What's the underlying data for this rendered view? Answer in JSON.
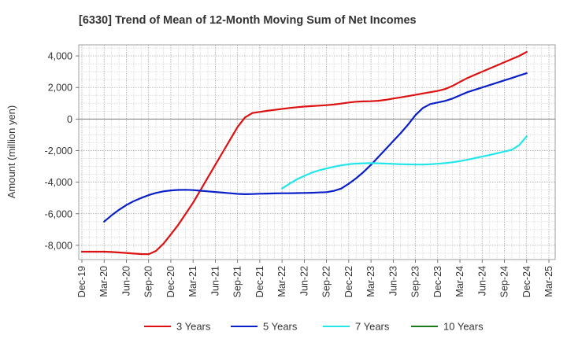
{
  "chart_data": {
    "type": "line",
    "title": "[6330]  Trend of Mean of 12-Month Moving Sum of Net Incomes",
    "xlabel": "",
    "ylabel": "Amount (million yen)",
    "ylim": [
      -8900,
      4700
    ],
    "yticks": [
      4000,
      2000,
      0,
      -2000,
      -4000,
      -6000,
      -8000
    ],
    "ytick_labels": [
      "4,000",
      "2,000",
      "0",
      "-2,000",
      "-4,000",
      "-6,000",
      "-8,000"
    ],
    "x_categories": [
      "Dec-19",
      "Mar-20",
      "Jun-20",
      "Sep-20",
      "Dec-20",
      "Mar-21",
      "Jun-21",
      "Sep-21",
      "Dec-21",
      "Mar-22",
      "Jun-22",
      "Sep-22",
      "Dec-22",
      "Mar-23",
      "Jun-23",
      "Sep-23",
      "Dec-23",
      "Mar-24",
      "Jun-24",
      "Sep-24",
      "Dec-24",
      "Mar-25"
    ],
    "grid": true,
    "legend_position": "bottom",
    "series": [
      {
        "name": "3 Years",
        "color": "#dd1111",
        "x": [
          "Dec-19",
          "Jan-20",
          "Feb-20",
          "Mar-20",
          "Apr-20",
          "May-20",
          "Jun-20",
          "Jul-20",
          "Aug-20",
          "Sep-20",
          "Oct-20",
          "Nov-20",
          "Dec-20",
          "Jan-21",
          "Feb-21",
          "Mar-21",
          "Apr-21",
          "May-21",
          "Jun-21",
          "Jul-21",
          "Aug-21",
          "Sep-21",
          "Oct-21",
          "Nov-21",
          "Dec-21",
          "Jan-22",
          "Feb-22",
          "Mar-22",
          "Apr-22",
          "May-22",
          "Jun-22",
          "Jul-22",
          "Aug-22",
          "Sep-22",
          "Oct-22",
          "Nov-22",
          "Dec-22",
          "Jan-23",
          "Feb-23",
          "Mar-23",
          "Apr-23",
          "May-23",
          "Jun-23",
          "Jul-23",
          "Aug-23",
          "Sep-23",
          "Oct-23",
          "Nov-23",
          "Dec-23",
          "Jan-24",
          "Feb-24",
          "Mar-24",
          "Apr-24",
          "May-24",
          "Jun-24",
          "Jul-24",
          "Aug-24",
          "Sep-24",
          "Oct-24",
          "Nov-24",
          "Dec-24"
        ],
        "values": [
          -8400,
          -8400,
          -8400,
          -8400,
          -8420,
          -8450,
          -8480,
          -8520,
          -8550,
          -8560,
          -8350,
          -7900,
          -7300,
          -6700,
          -6000,
          -5300,
          -4500,
          -3700,
          -2900,
          -2100,
          -1300,
          -500,
          100,
          380,
          450,
          520,
          580,
          640,
          700,
          750,
          790,
          820,
          850,
          880,
          920,
          980,
          1050,
          1100,
          1120,
          1130,
          1160,
          1220,
          1300,
          1370,
          1450,
          1530,
          1620,
          1700,
          1780,
          1900,
          2100,
          2350,
          2600,
          2800,
          3000,
          3200,
          3400,
          3600,
          3800,
          4000,
          4250
        ]
      },
      {
        "name": "5 Years",
        "color": "#0a1fc7",
        "x": [
          "Mar-20",
          "Apr-20",
          "May-20",
          "Jun-20",
          "Jul-20",
          "Aug-20",
          "Sep-20",
          "Oct-20",
          "Nov-20",
          "Dec-20",
          "Jan-21",
          "Feb-21",
          "Mar-21",
          "Apr-21",
          "May-21",
          "Jun-21",
          "Jul-21",
          "Aug-21",
          "Sep-21",
          "Oct-21",
          "Nov-21",
          "Dec-21",
          "Jan-22",
          "Feb-22",
          "Mar-22",
          "Apr-22",
          "May-22",
          "Jun-22",
          "Jul-22",
          "Aug-22",
          "Sep-22",
          "Oct-22",
          "Nov-22",
          "Dec-22",
          "Jan-23",
          "Feb-23",
          "Mar-23",
          "Apr-23",
          "May-23",
          "Jun-23",
          "Jul-23",
          "Aug-23",
          "Sep-23",
          "Oct-23",
          "Nov-23",
          "Dec-23",
          "Jan-24",
          "Feb-24",
          "Mar-24",
          "Apr-24",
          "May-24",
          "Jun-24",
          "Jul-24",
          "Aug-24",
          "Sep-24",
          "Oct-24",
          "Nov-24",
          "Dec-24"
        ],
        "values": [
          -6500,
          -6100,
          -5750,
          -5450,
          -5200,
          -5000,
          -4820,
          -4680,
          -4580,
          -4520,
          -4490,
          -4480,
          -4500,
          -4540,
          -4580,
          -4620,
          -4660,
          -4700,
          -4740,
          -4760,
          -4750,
          -4730,
          -4720,
          -4710,
          -4700,
          -4700,
          -4690,
          -4680,
          -4670,
          -4650,
          -4630,
          -4550,
          -4400,
          -4100,
          -3750,
          -3350,
          -2900,
          -2400,
          -1900,
          -1400,
          -900,
          -350,
          250,
          700,
          950,
          1050,
          1150,
          1300,
          1500,
          1700,
          1850,
          2000,
          2150,
          2300,
          2450,
          2600,
          2750,
          2900
        ]
      },
      {
        "name": "7 Years",
        "color": "#22e6ea",
        "x": [
          "Mar-22",
          "Apr-22",
          "May-22",
          "Jun-22",
          "Jul-22",
          "Aug-22",
          "Sep-22",
          "Oct-22",
          "Nov-22",
          "Dec-22",
          "Jan-23",
          "Feb-23",
          "Mar-23",
          "Apr-23",
          "May-23",
          "Jun-23",
          "Jul-23",
          "Aug-23",
          "Sep-23",
          "Oct-23",
          "Nov-23",
          "Dec-23",
          "Jan-24",
          "Feb-24",
          "Mar-24",
          "Apr-24",
          "May-24",
          "Jun-24",
          "Jul-24",
          "Aug-24",
          "Sep-24",
          "Oct-24",
          "Nov-24",
          "Dec-24"
        ],
        "values": [
          -4400,
          -4100,
          -3820,
          -3600,
          -3400,
          -3250,
          -3130,
          -3020,
          -2930,
          -2860,
          -2820,
          -2800,
          -2790,
          -2800,
          -2820,
          -2840,
          -2860,
          -2870,
          -2880,
          -2880,
          -2860,
          -2830,
          -2790,
          -2740,
          -2670,
          -2580,
          -2480,
          -2380,
          -2280,
          -2170,
          -2060,
          -1950,
          -1650,
          -1100
        ]
      },
      {
        "name": "10 Years",
        "color": "#1a7a1a",
        "x": [],
        "values": []
      }
    ]
  }
}
